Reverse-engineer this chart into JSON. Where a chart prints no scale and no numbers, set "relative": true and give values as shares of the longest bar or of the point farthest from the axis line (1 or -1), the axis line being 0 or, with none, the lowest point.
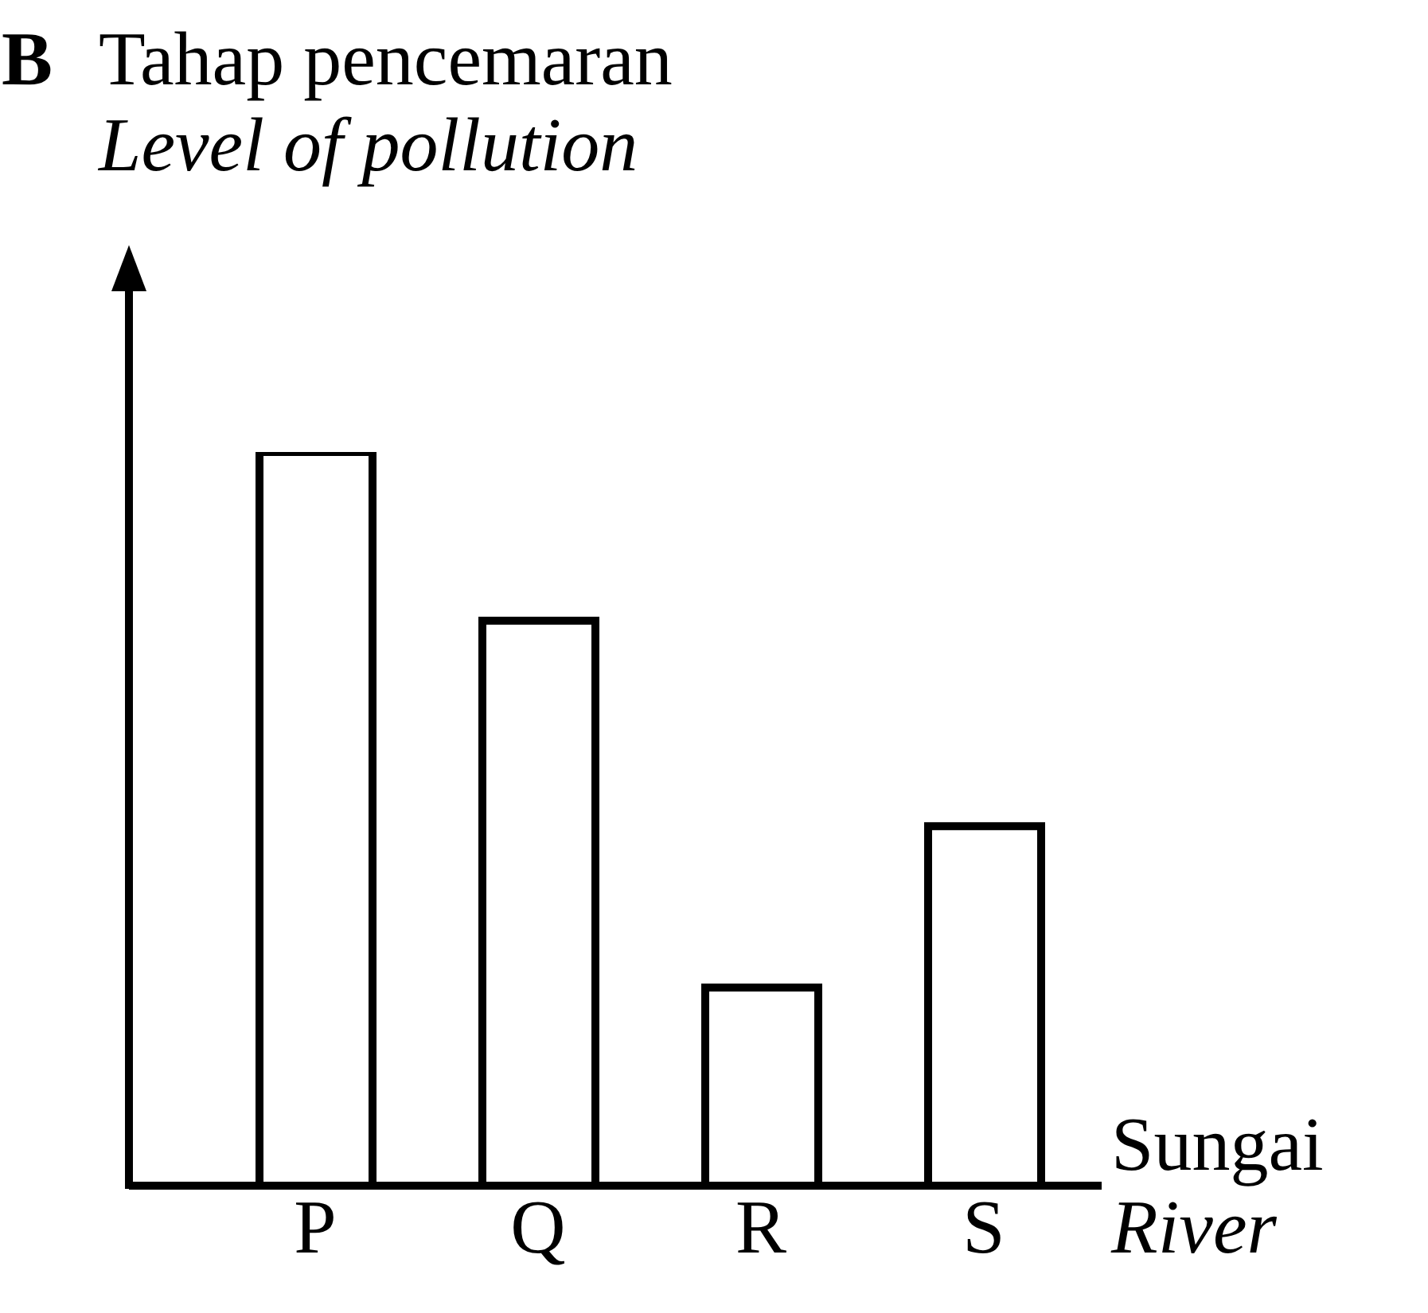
{
  "chart_data": {
    "type": "bar",
    "relative": true,
    "ylabel": "Tahap pencemaran\nLevel of pollution",
    "xlabel": "Sungai\nRiver",
    "annotations": [
      "B"
    ],
    "categories": [
      "P",
      "Q",
      "R",
      "S"
    ],
    "values": [
      1,
      0.77,
      0.27,
      0.49
    ],
    "color": "#ffffff"
  }
}
